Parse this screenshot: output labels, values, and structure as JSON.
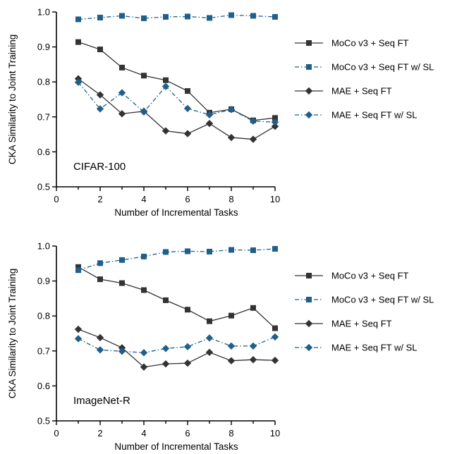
{
  "chart_data": [
    {
      "type": "line",
      "panel_label": "CIFAR-100",
      "xlabel": "Number of Incremental Tasks",
      "ylabel": "CKA Similarity to Joint Training",
      "xlim": [
        0,
        10
      ],
      "ylim": [
        0.5,
        1.0
      ],
      "xticks": [
        "0",
        "2",
        "4",
        "6",
        "8",
        "10"
      ],
      "yticks": [
        "0.5",
        "0.6",
        "0.7",
        "0.8",
        "0.9",
        "1.0"
      ],
      "x": [
        1,
        2,
        3,
        4,
        5,
        6,
        7,
        8,
        9,
        10
      ],
      "legend_position": "right",
      "series": [
        {
          "name": "MoCo v3 + Seq FT",
          "color": "#333333",
          "marker": "square",
          "line": "solid",
          "values": [
            0.914,
            0.893,
            0.841,
            0.818,
            0.805,
            0.774,
            0.712,
            0.722,
            0.69,
            0.697
          ]
        },
        {
          "name": "MoCo v3 + Seq FT w/ SL",
          "color": "#1f5f8b",
          "marker": "square",
          "line": "dashdot",
          "values": [
            0.979,
            0.984,
            0.989,
            0.982,
            0.986,
            0.987,
            0.983,
            0.991,
            0.989,
            0.986
          ]
        },
        {
          "name": "MAE + Seq FT",
          "color": "#333333",
          "marker": "diamond",
          "line": "solid",
          "values": [
            0.809,
            0.763,
            0.709,
            0.716,
            0.66,
            0.652,
            0.681,
            0.641,
            0.636,
            0.673
          ]
        },
        {
          "name": "MAE + Seq FT w/ SL",
          "color": "#1f5f8b",
          "marker": "diamond",
          "line": "dashdot",
          "values": [
            0.799,
            0.723,
            0.769,
            0.714,
            0.787,
            0.724,
            0.706,
            0.721,
            0.688,
            0.685
          ]
        }
      ]
    },
    {
      "type": "line",
      "panel_label": "ImageNet-R",
      "xlabel": "Number of Incremental Tasks",
      "ylabel": "CKA Similarity to Joint Training",
      "xlim": [
        0,
        10
      ],
      "ylim": [
        0.5,
        1.0
      ],
      "xticks": [
        "0",
        "2",
        "4",
        "6",
        "8",
        "10"
      ],
      "yticks": [
        "0.5",
        "0.6",
        "0.7",
        "0.8",
        "0.9",
        "1.0"
      ],
      "x": [
        1,
        2,
        3,
        4,
        5,
        6,
        7,
        8,
        9,
        10
      ],
      "legend_position": "right",
      "series": [
        {
          "name": "MoCo v3 + Seq FT",
          "color": "#333333",
          "marker": "square",
          "line": "solid",
          "values": [
            0.94,
            0.905,
            0.894,
            0.874,
            0.845,
            0.818,
            0.785,
            0.801,
            0.823,
            0.765
          ]
        },
        {
          "name": "MoCo v3 + Seq FT w/ SL",
          "color": "#1f5f8b",
          "marker": "square",
          "line": "dashdot",
          "values": [
            0.931,
            0.951,
            0.96,
            0.97,
            0.983,
            0.985,
            0.984,
            0.989,
            0.988,
            0.992
          ]
        },
        {
          "name": "MAE + Seq FT",
          "color": "#333333",
          "marker": "diamond",
          "line": "solid",
          "values": [
            0.762,
            0.738,
            0.709,
            0.654,
            0.663,
            0.665,
            0.696,
            0.672,
            0.675,
            0.673
          ]
        },
        {
          "name": "MAE + Seq FT w/ SL",
          "color": "#1f5f8b",
          "marker": "diamond",
          "line": "dashdot",
          "values": [
            0.735,
            0.703,
            0.699,
            0.695,
            0.707,
            0.712,
            0.737,
            0.714,
            0.714,
            0.74
          ]
        }
      ]
    }
  ]
}
